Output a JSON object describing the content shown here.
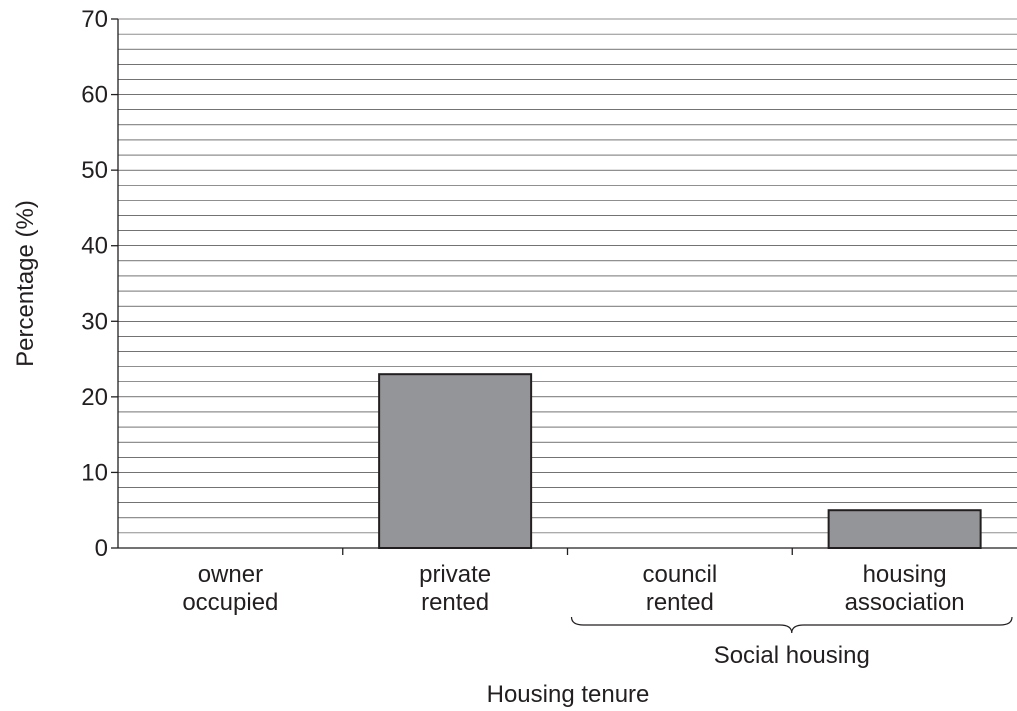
{
  "chart_data": {
    "type": "bar",
    "title": "",
    "xlabel": "Housing tenure",
    "ylabel": "Percentage (%)",
    "ylim": [
      0,
      70
    ],
    "major_ticks": [
      0,
      10,
      20,
      30,
      40,
      50,
      60,
      70
    ],
    "minor_step": 2,
    "grid": true,
    "categories": [
      [
        "owner",
        "occupied"
      ],
      [
        "private",
        "rented"
      ],
      [
        "council",
        "rented"
      ],
      [
        "housing",
        "association"
      ]
    ],
    "values": [
      0,
      23,
      0,
      5
    ],
    "bar_color": "#939598",
    "group_label": "Social housing",
    "group_categories": [
      2,
      3
    ]
  }
}
